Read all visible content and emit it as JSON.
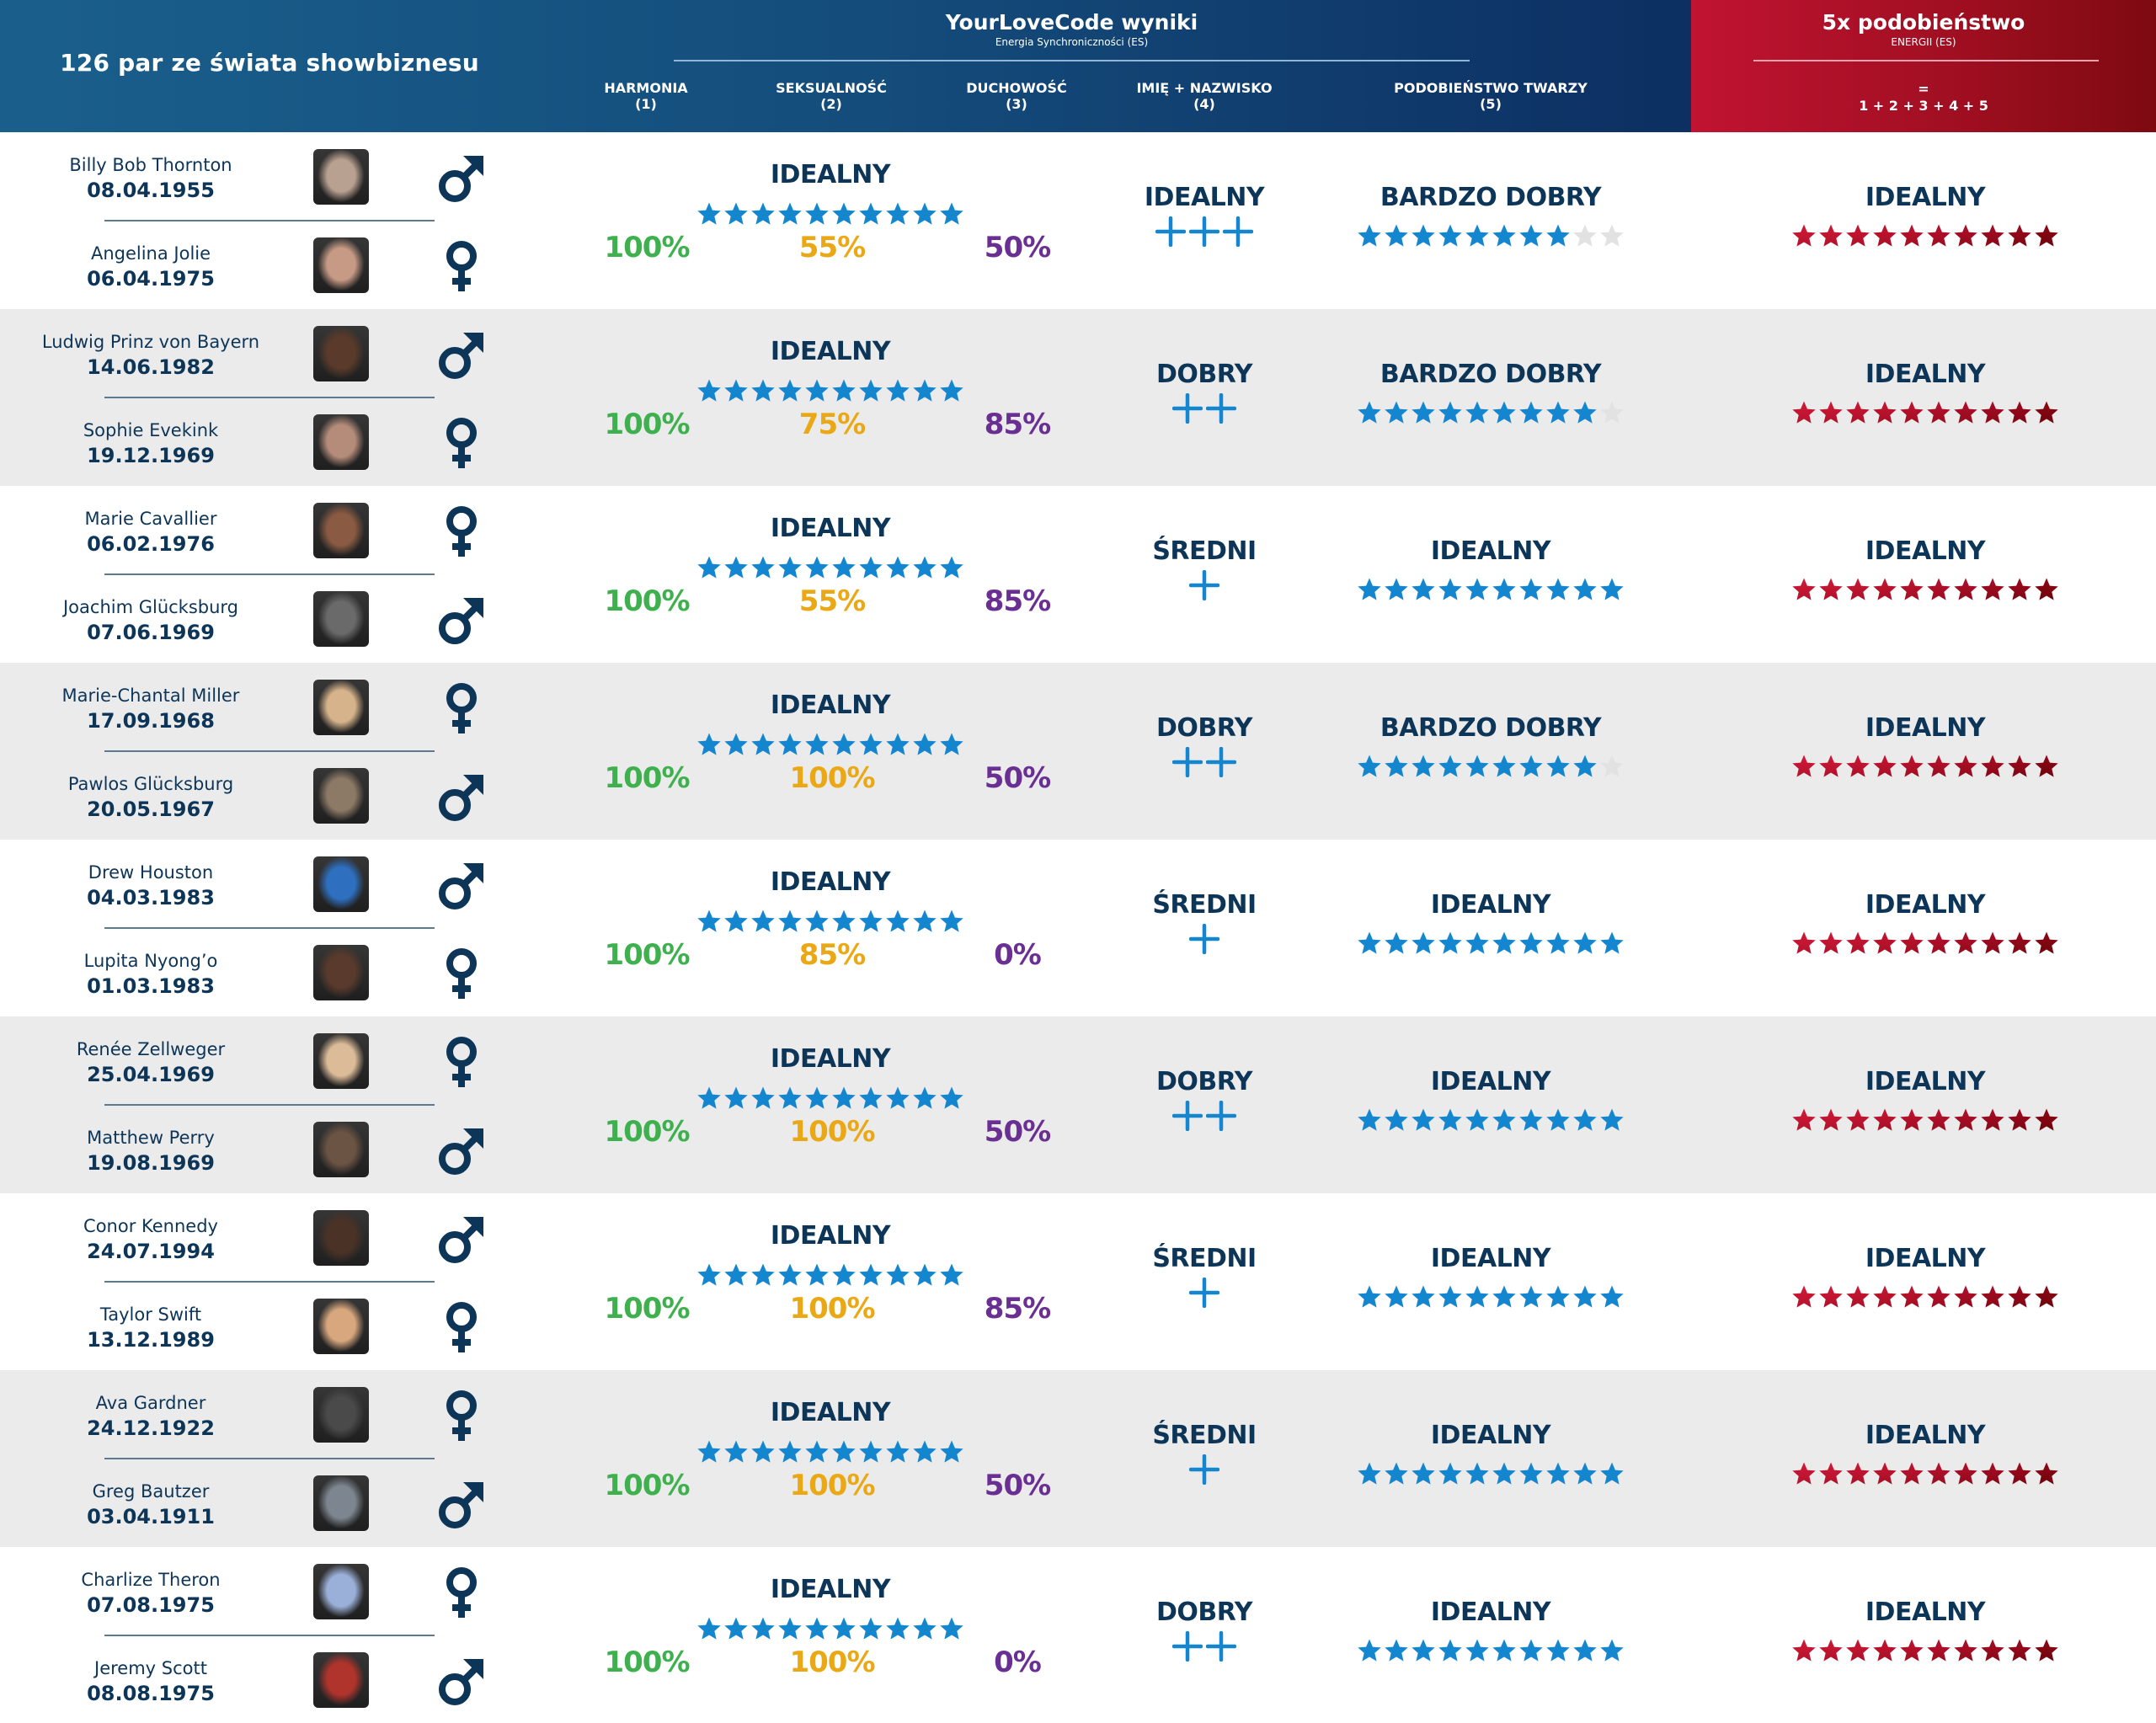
{
  "header": {
    "left_title": "126 par ze świata showbiznesu",
    "ylc_title": "YourLoveCode wyniki",
    "ylc_subtitle": "Energia Synchroniczności (ES)",
    "columns": [
      {
        "label": "HARMONIA",
        "num": "(1)"
      },
      {
        "label": "SEKSUALNOŚĆ",
        "num": "(2)"
      },
      {
        "label": "DUCHOWOŚĆ",
        "num": "(3)"
      },
      {
        "label": "IMIĘ + NAZWISKO",
        "num": "(4)"
      },
      {
        "label": "PODOBIEŃSTWO TWARZY",
        "num": "(5)"
      }
    ],
    "red_title": "5x podobieństwo",
    "red_subtitle": "ENERGII (ES)",
    "red_eq": "=",
    "red_formula": "1 + 2 + 3 + 4 + 5"
  },
  "colors": {
    "navy": "#0d3558",
    "blue_star": "#1486cf",
    "empty_star": "#e2e2e2",
    "red_star": "#b0122c",
    "harmonia": "#3fb04e",
    "seksualnosc": "#eaa815",
    "duchowosc": "#6a2f92",
    "row_alt": "#ebebeb"
  },
  "pairs": [
    {
      "p1": {
        "name": "Billy Bob Thornton",
        "date": "08.04.1955",
        "gender": "male",
        "photo_tone": "#b9a191"
      },
      "p2": {
        "name": "Angelina Jolie",
        "date": "06.04.1975",
        "gender": "female",
        "photo_tone": "#c79a85"
      },
      "es_label": "IDEALNY",
      "es_stars": 10,
      "harmonia": "100%",
      "seksualnosc": "55%",
      "duchowosc": "50%",
      "name_label": "IDEALNY",
      "name_plus": 3,
      "face_label": "BARDZO DOBRY",
      "face_stars": 8,
      "total_label": "IDEALNY",
      "total_stars": 10
    },
    {
      "p1": {
        "name": "Ludwig Prinz von Bayern",
        "date": "14.06.1982",
        "gender": "male",
        "photo_tone": "#5a3a2a"
      },
      "p2": {
        "name": "Sophie Evekink",
        "date": "19.12.1969",
        "gender": "female",
        "photo_tone": "#b58c7a"
      },
      "es_label": "IDEALNY",
      "es_stars": 10,
      "harmonia": "100%",
      "seksualnosc": "75%",
      "duchowosc": "85%",
      "name_label": "DOBRY",
      "name_plus": 2,
      "face_label": "BARDZO DOBRY",
      "face_stars": 9,
      "total_label": "IDEALNY",
      "total_stars": 10
    },
    {
      "p1": {
        "name": "Marie Cavallier",
        "date": "06.02.1976",
        "gender": "female",
        "photo_tone": "#8a5a42"
      },
      "p2": {
        "name": "Joachim Glücksburg",
        "date": "07.06.1969",
        "gender": "male",
        "photo_tone": "#6a6a6a"
      },
      "es_label": "IDEALNY",
      "es_stars": 10,
      "harmonia": "100%",
      "seksualnosc": "55%",
      "duchowosc": "85%",
      "name_label": "ŚREDNI",
      "name_plus": 1,
      "face_label": "IDEALNY",
      "face_stars": 10,
      "total_label": "IDEALNY",
      "total_stars": 10
    },
    {
      "p1": {
        "name": "Marie-Chantal Miller",
        "date": "17.09.1968",
        "gender": "female",
        "photo_tone": "#d6b38a"
      },
      "p2": {
        "name": "Pawlos Glücksburg",
        "date": "20.05.1967",
        "gender": "male",
        "photo_tone": "#8d7a66"
      },
      "es_label": "IDEALNY",
      "es_stars": 10,
      "harmonia": "100%",
      "seksualnosc": "100%",
      "duchowosc": "50%",
      "name_label": "DOBRY",
      "name_plus": 2,
      "face_label": "BARDZO DOBRY",
      "face_stars": 9,
      "total_label": "IDEALNY",
      "total_stars": 10
    },
    {
      "p1": {
        "name": "Drew Houston",
        "date": "04.03.1983",
        "gender": "male",
        "photo_tone": "#2e6fbf"
      },
      "p2": {
        "name": "Lupita Nyong’o",
        "date": "01.03.1983",
        "gender": "female",
        "photo_tone": "#5a3a2c"
      },
      "es_label": "IDEALNY",
      "es_stars": 10,
      "harmonia": "100%",
      "seksualnosc": "85%",
      "duchowosc": "0%",
      "name_label": "ŚREDNI",
      "name_plus": 1,
      "face_label": "IDEALNY",
      "face_stars": 10,
      "total_label": "IDEALNY",
      "total_stars": 10
    },
    {
      "p1": {
        "name": "Renée Zellweger",
        "date": "25.04.1969",
        "gender": "female",
        "photo_tone": "#dcbb98"
      },
      "p2": {
        "name": "Matthew Perry",
        "date": "19.08.1969",
        "gender": "male",
        "photo_tone": "#6b5444"
      },
      "es_label": "IDEALNY",
      "es_stars": 10,
      "harmonia": "100%",
      "seksualnosc": "100%",
      "duchowosc": "50%",
      "name_label": "DOBRY",
      "name_plus": 2,
      "face_label": "IDEALNY",
      "face_stars": 10,
      "total_label": "IDEALNY",
      "total_stars": 10
    },
    {
      "p1": {
        "name": "Conor Kennedy",
        "date": "24.07.1994",
        "gender": "male",
        "photo_tone": "#4a3226"
      },
      "p2": {
        "name": "Taylor Swift",
        "date": "13.12.1989",
        "gender": "female",
        "photo_tone": "#d8a77e"
      },
      "es_label": "IDEALNY",
      "es_stars": 10,
      "harmonia": "100%",
      "seksualnosc": "100%",
      "duchowosc": "85%",
      "name_label": "ŚREDNI",
      "name_plus": 1,
      "face_label": "IDEALNY",
      "face_stars": 10,
      "total_label": "IDEALNY",
      "total_stars": 10
    },
    {
      "p1": {
        "name": "Ava Gardner",
        "date": "24.12.1922",
        "gender": "female",
        "photo_tone": "#4a4a4a"
      },
      "p2": {
        "name": "Greg Bautzer",
        "date": "03.04.1911",
        "gender": "male",
        "photo_tone": "#7d8690"
      },
      "es_label": "IDEALNY",
      "es_stars": 10,
      "harmonia": "100%",
      "seksualnosc": "100%",
      "duchowosc": "50%",
      "name_label": "ŚREDNI",
      "name_plus": 1,
      "face_label": "IDEALNY",
      "face_stars": 10,
      "total_label": "IDEALNY",
      "total_stars": 10
    },
    {
      "p1": {
        "name": "Charlize Theron",
        "date": "07.08.1975",
        "gender": "female",
        "photo_tone": "#9ab0d8"
      },
      "p2": {
        "name": "Jeremy Scott",
        "date": "08.08.1975",
        "gender": "male",
        "photo_tone": "#b0342c"
      },
      "es_label": "IDEALNY",
      "es_stars": 10,
      "harmonia": "100%",
      "seksualnosc": "100%",
      "duchowosc": "0%",
      "name_label": "DOBRY",
      "name_plus": 2,
      "face_label": "IDEALNY",
      "face_stars": 10,
      "total_label": "IDEALNY",
      "total_stars": 10
    }
  ]
}
